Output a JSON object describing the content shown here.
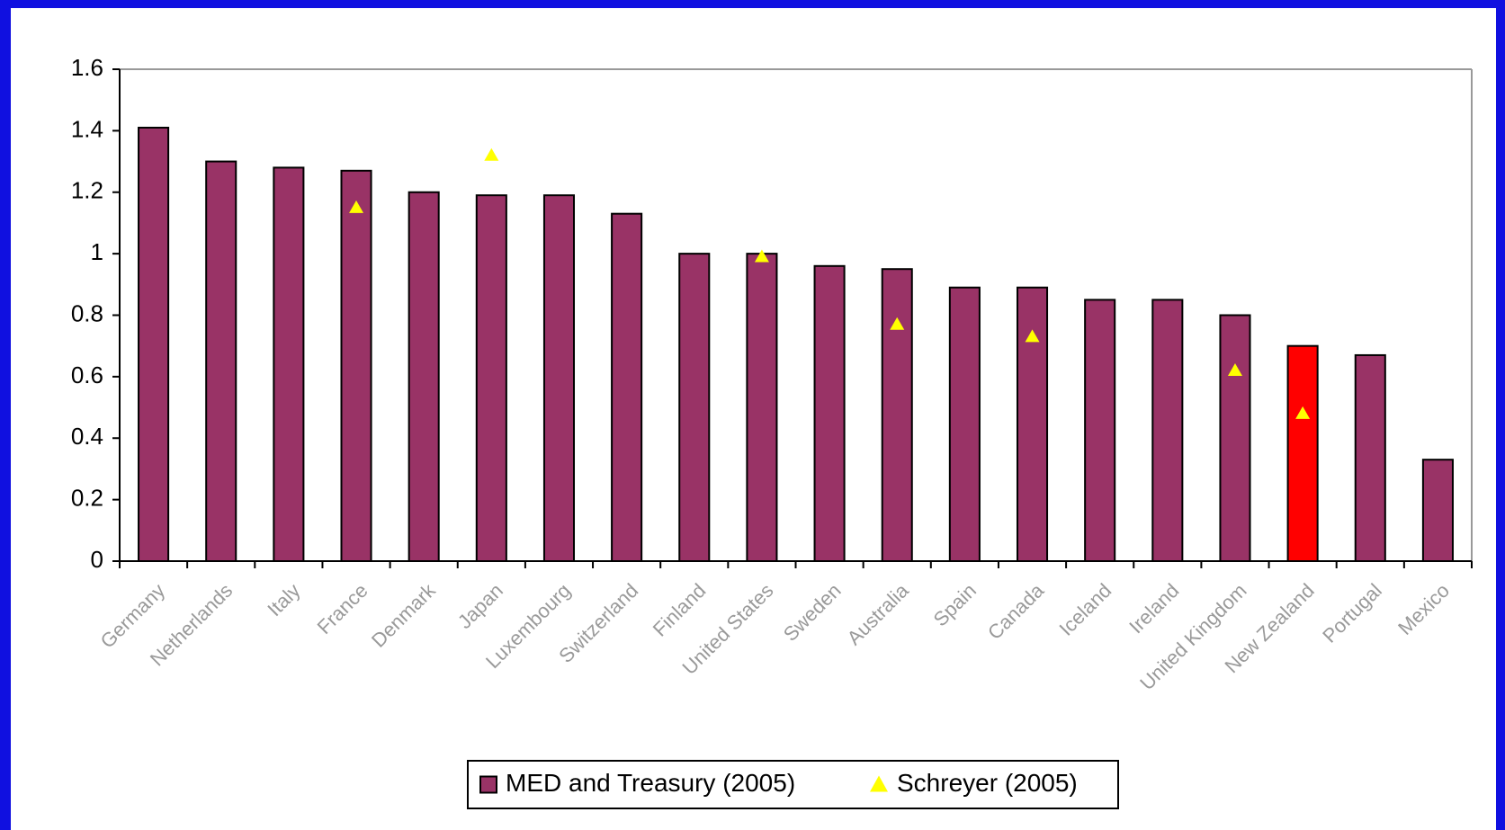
{
  "chart_data": {
    "type": "bar",
    "categories": [
      "Germany",
      "Netherlands",
      "Italy",
      "France",
      "Denmark",
      "Japan",
      "Luxembourg",
      "Switzerland",
      "Finland",
      "United States",
      "Sweden",
      "Australia",
      "Spain",
      "Canada",
      "Iceland",
      "Ireland",
      "United Kingdom",
      "New Zealand",
      "Portugal",
      "Mexico"
    ],
    "series": [
      {
        "name": "MED and Treasury (2005)",
        "type": "bar",
        "color": "#993366",
        "point_colors": [
          "#993366",
          "#993366",
          "#993366",
          "#993366",
          "#993366",
          "#993366",
          "#993366",
          "#993366",
          "#993366",
          "#993366",
          "#993366",
          "#993366",
          "#993366",
          "#993366",
          "#993366",
          "#993366",
          "#993366",
          "#ff0000",
          "#993366",
          "#993366"
        ],
        "values": [
          1.41,
          1.3,
          1.28,
          1.27,
          1.2,
          1.19,
          1.19,
          1.13,
          1.0,
          1.0,
          0.96,
          0.95,
          0.89,
          0.89,
          0.85,
          0.85,
          0.8,
          0.7,
          0.67,
          0.33
        ]
      },
      {
        "name": "Schreyer (2005)",
        "type": "triangle",
        "color": "#ffff00",
        "values": [
          null,
          null,
          null,
          1.15,
          null,
          1.32,
          null,
          null,
          null,
          0.99,
          null,
          0.77,
          null,
          0.73,
          null,
          null,
          0.62,
          0.48,
          null,
          null
        ]
      }
    ],
    "ylim": [
      0,
      1.6
    ],
    "yticks": [
      0,
      0.2,
      0.4,
      0.6,
      0.8,
      1,
      1.2,
      1.4,
      1.6
    ],
    "grid": false,
    "legend": "bottom"
  }
}
